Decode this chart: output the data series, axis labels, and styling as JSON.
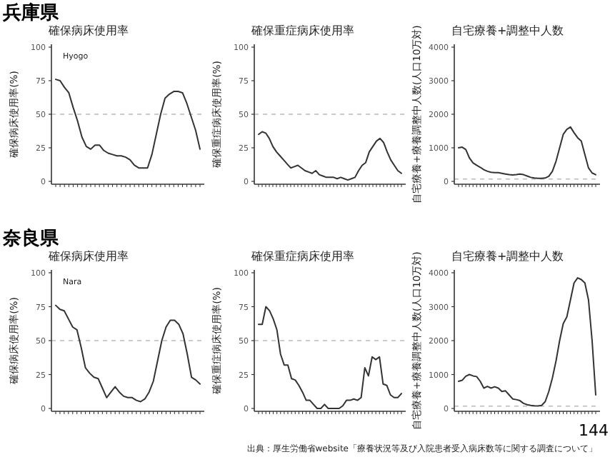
{
  "chart_data": [
    {
      "type": "line",
      "title": "兵庫県",
      "subtitle": "確保病床使用率",
      "ylabel": "確保病床使用率(%)",
      "annotations": [
        "Hyogo"
      ],
      "categories": [
        null,
        null,
        null,
        null,
        null,
        null,
        null,
        null,
        null,
        null,
        null,
        null,
        null,
        null,
        null,
        null,
        null,
        null,
        null,
        null,
        null,
        null,
        null,
        null,
        null,
        null,
        null,
        null,
        null,
        null,
        null,
        null,
        null,
        null
      ],
      "series": [
        {
          "color": "#333333",
          "values": [
            76,
            75,
            70,
            66,
            55,
            45,
            33,
            26,
            24,
            27,
            27,
            23,
            21,
            20,
            19,
            19,
            18,
            16,
            12,
            10,
            10,
            10,
            20,
            35,
            50,
            62,
            65,
            67,
            67,
            66,
            58,
            48,
            38,
            24
          ]
        }
      ],
      "ylim": [
        0,
        100
      ],
      "yticks": [
        0,
        25,
        50,
        75,
        100
      ],
      "ref_lines": [
        {
          "axis": "y",
          "value": 50,
          "color": "#bbbbbb",
          "line_style": "dashed"
        }
      ]
    },
    {
      "type": "line",
      "title": "確保重症病床使用率",
      "ylabel": "確保重症病床使用率(%)",
      "categories": [
        null,
        null,
        null,
        null,
        null,
        null,
        null,
        null,
        null,
        null,
        null,
        null,
        null,
        null,
        null,
        null,
        null,
        null,
        null,
        null,
        null,
        null,
        null,
        null,
        null,
        null,
        null,
        null,
        null,
        null,
        null,
        null,
        null,
        null,
        null,
        null,
        null,
        null,
        null,
        null,
        null
      ],
      "series": [
        {
          "color": "#333333",
          "values": [
            35,
            37,
            36,
            32,
            26,
            22,
            19,
            16,
            13,
            10,
            11,
            12,
            10,
            8,
            7,
            6,
            8,
            5,
            4,
            3,
            3,
            3,
            2,
            3,
            2,
            1,
            2,
            3,
            8,
            12,
            14,
            22,
            26,
            30,
            32,
            29,
            22,
            16,
            12,
            8,
            6
          ]
        }
      ],
      "ylim": [
        0,
        100
      ],
      "yticks": [
        0,
        25,
        50,
        75,
        100
      ],
      "ref_lines": [
        {
          "axis": "y",
          "value": 50,
          "color": "#bbbbbb",
          "line_style": "dashed"
        }
      ]
    },
    {
      "type": "line",
      "title": "自宅療養+調整中人数",
      "ylabel": "自宅療養+療養調整中人数(人口10万対)",
      "categories": [
        null,
        null,
        null,
        null,
        null,
        null,
        null,
        null,
        null,
        null,
        null,
        null,
        null,
        null,
        null,
        null,
        null,
        null,
        null,
        null,
        null,
        null,
        null,
        null,
        null,
        null,
        null,
        null,
        null,
        null,
        null,
        null,
        null,
        null,
        null,
        null,
        null,
        null,
        null
      ],
      "series": [
        {
          "color": "#333333",
          "values": [
            1000,
            1020,
            950,
            700,
            550,
            480,
            420,
            350,
            300,
            270,
            260,
            260,
            240,
            220,
            200,
            190,
            200,
            220,
            200,
            160,
            120,
            100,
            90,
            90,
            100,
            150,
            300,
            600,
            1000,
            1400,
            1550,
            1620,
            1450,
            1300,
            1200,
            800,
            400,
            250,
            200
          ]
        }
      ],
      "ylim": [
        0,
        4000
      ],
      "yticks": [
        0,
        1000,
        2000,
        3000,
        4000
      ],
      "ref_lines": [
        {
          "axis": "y",
          "value": 70,
          "color": "#bbbbbb",
          "line_style": "dashed"
        }
      ]
    },
    {
      "type": "line",
      "title": "奈良県",
      "subtitle": "確保病床使用率",
      "ylabel": "確保病床使用率(%)",
      "annotations": [
        "Nara"
      ],
      "categories": [
        null,
        null,
        null,
        null,
        null,
        null,
        null,
        null,
        null,
        null,
        null,
        null,
        null,
        null,
        null,
        null,
        null,
        null,
        null,
        null,
        null,
        null,
        null,
        null,
        null,
        null,
        null,
        null,
        null,
        null,
        null,
        null,
        null,
        null,
        null
      ],
      "series": [
        {
          "color": "#333333",
          "values": [
            76,
            73,
            72,
            66,
            60,
            58,
            45,
            30,
            26,
            23,
            22,
            15,
            8,
            12,
            16,
            12,
            9,
            8,
            8,
            6,
            5,
            7,
            12,
            20,
            35,
            50,
            60,
            65,
            65,
            62,
            55,
            40,
            23,
            21,
            18
          ]
        }
      ],
      "ylim": [
        0,
        100
      ],
      "yticks": [
        0,
        25,
        50,
        75,
        100
      ],
      "ref_lines": [
        {
          "axis": "y",
          "value": 50,
          "color": "#bbbbbb",
          "line_style": "dashed"
        }
      ]
    },
    {
      "type": "line",
      "title": "確保重症病床使用率",
      "ylabel": "確保重症病床使用率(%)",
      "categories": [
        null,
        null,
        null,
        null,
        null,
        null,
        null,
        null,
        null,
        null,
        null,
        null,
        null,
        null,
        null,
        null,
        null,
        null,
        null,
        null,
        null,
        null,
        null,
        null,
        null,
        null,
        null,
        null,
        null,
        null,
        null,
        null,
        null,
        null,
        null,
        null,
        null,
        null,
        null,
        null
      ],
      "series": [
        {
          "color": "#333333",
          "values": [
            62,
            62,
            75,
            72,
            66,
            58,
            40,
            32,
            32,
            22,
            21,
            17,
            12,
            6,
            6,
            3,
            0,
            0,
            3,
            0,
            0,
            0,
            0,
            2,
            6,
            6,
            7,
            6,
            8,
            30,
            24,
            38,
            36,
            38,
            18,
            17,
            10,
            8,
            8,
            11
          ]
        }
      ],
      "ylim": [
        0,
        100
      ],
      "yticks": [
        0,
        25,
        50,
        75,
        100
      ],
      "ref_lines": [
        {
          "axis": "y",
          "value": 50,
          "color": "#bbbbbb",
          "line_style": "dashed"
        }
      ]
    },
    {
      "type": "line",
      "title": "自宅療養+調整中人数",
      "ylabel": "自宅療養+療養調整中人数(人口10万対)",
      "annotations": [
        "出典：厚生労働省website「療養状況等及び入院患者受入病床数等に関する調査について」",
        "144"
      ],
      "categories": [
        null,
        null,
        null,
        null,
        null,
        null,
        null,
        null,
        null,
        null,
        null,
        null,
        null,
        null,
        null,
        null,
        null,
        null,
        null,
        null,
        null,
        null,
        null,
        null,
        null,
        null,
        null,
        null,
        null,
        null,
        null,
        null,
        null,
        null,
        null,
        null,
        null,
        null,
        null
      ],
      "series": [
        {
          "color": "#333333",
          "values": [
            800,
            830,
            950,
            1000,
            960,
            940,
            800,
            600,
            650,
            600,
            640,
            600,
            500,
            520,
            400,
            280,
            260,
            230,
            150,
            110,
            90,
            80,
            75,
            90,
            200,
            500,
            900,
            1400,
            2000,
            2500,
            2700,
            3200,
            3700,
            3850,
            3800,
            3700,
            3200,
            2000,
            400
          ]
        }
      ],
      "ylim": [
        0,
        4000
      ],
      "yticks": [
        0,
        1000,
        2000,
        3000,
        4000
      ],
      "ref_lines": [
        {
          "axis": "y",
          "value": 70,
          "color": "#bbbbbb",
          "line_style": "dashed"
        }
      ]
    }
  ]
}
